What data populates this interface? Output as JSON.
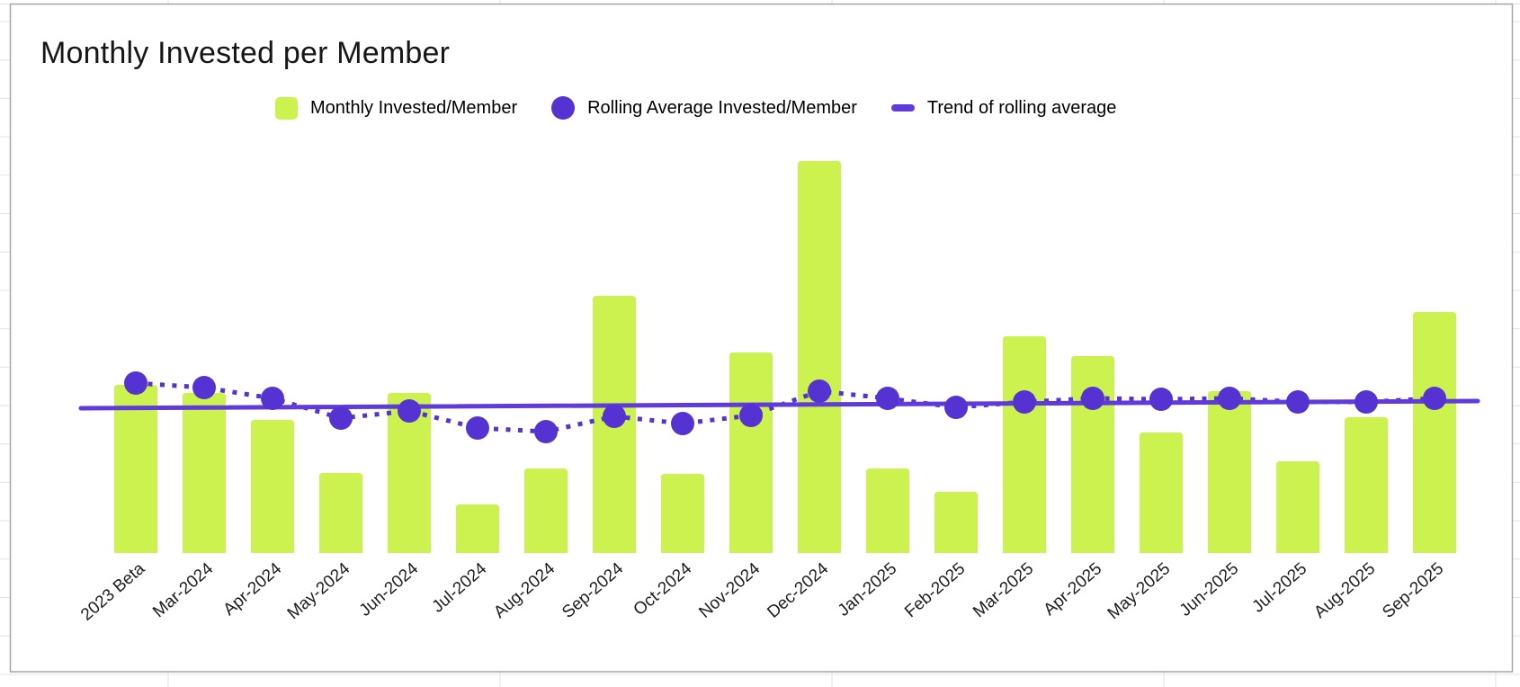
{
  "window": {
    "background_color": "#ffffff",
    "spreadsheet_grid_color": "#e2e2e2",
    "chart_border_color": "#a6a6a6",
    "chart_background": "#ffffff"
  },
  "chart": {
    "title": "Monthly Invested per Member",
    "title_color": "#161616",
    "legend": [
      {
        "label": "Monthly Invested/Member",
        "marker": "square",
        "color": "#cbf24e"
      },
      {
        "label": "Rolling Average Invested/Member",
        "marker": "circle",
        "color": "#5533d2"
      },
      {
        "label": "Trend of rolling average",
        "marker": "dash",
        "color": "#5f3bdc"
      }
    ]
  },
  "chart_data": {
    "type": "bar",
    "subtype": "combo: bars + dotted rolling-average point series + straight trendline",
    "title": "Monthly Invested per Member",
    "xlabel": "",
    "ylabel": "",
    "y_axis_visible": false,
    "unit": "relative (no y-axis or value labels shown in chart)",
    "x_labels_rotation_degrees": -41,
    "grid": "off inside chart; faint spreadsheet gridlines outside chart frame",
    "legend_position": "top",
    "categories": [
      "2023 Beta",
      "Mar-2024",
      "Apr-2024",
      "May-2024",
      "Jun-2024",
      "Jul-2024",
      "Aug-2024",
      "Sep-2024",
      "Oct-2024",
      "Nov-2024",
      "Dec-2024",
      "Jan-2025",
      "Feb-2025",
      "Mar-2025",
      "Apr-2025",
      "May-2025",
      "Jun-2025",
      "Jul-2025",
      "Aug-2025",
      "Sep-2025"
    ],
    "series": [
      {
        "name": "Monthly Invested/Member",
        "type": "bar",
        "color": "#cbf24e",
        "values": [
          187,
          178,
          148,
          89,
          178,
          54,
          94,
          286,
          88,
          223,
          436,
          94,
          68,
          241,
          219,
          134,
          180,
          102,
          151,
          268
        ]
      },
      {
        "name": "Rolling Average Invested/Member",
        "type": "dotted-line-with-points",
        "color": "#5533d2",
        "values": [
          189,
          184,
          172,
          150,
          158,
          139,
          135,
          152,
          144,
          153,
          180,
          172,
          162,
          168,
          172,
          171,
          172,
          168,
          168,
          172
        ]
      },
      {
        "name": "Trend of rolling average",
        "type": "trendline",
        "color": "#5f3bdc",
        "endpoint_values": [
          161,
          169
        ]
      }
    ],
    "ylim": [
      0,
      460
    ]
  }
}
